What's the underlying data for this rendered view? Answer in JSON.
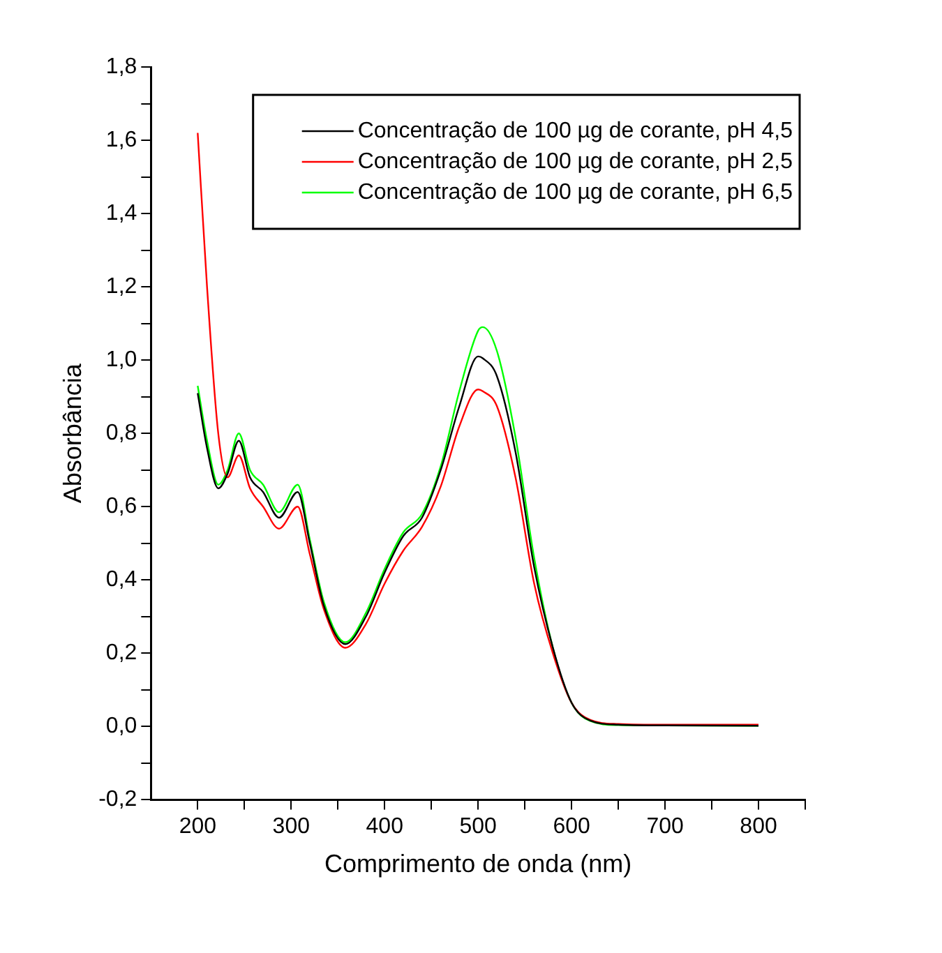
{
  "chart_data": {
    "type": "line",
    "xlabel": "Comprimento de onda (nm)",
    "ylabel": "Absorbância",
    "xlim": [
      150,
      850
    ],
    "ylim": [
      -0.2,
      1.8
    ],
    "xticks": [
      200,
      {
        "value": 250,
        "label": null
      },
      300,
      {
        "value": 350,
        "label": null
      },
      400,
      {
        "value": 450,
        "label": null
      },
      500,
      {
        "value": 550,
        "label": null
      },
      600,
      {
        "value": 650,
        "label": null
      },
      700,
      {
        "value": 750,
        "label": null
      },
      800,
      {
        "value": 850,
        "label": null
      }
    ],
    "yticks": [
      {
        "value": -0.2,
        "label": "-0,2"
      },
      {
        "value": -0.1,
        "label": null
      },
      {
        "value": 0,
        "label": "0,0"
      },
      {
        "value": 0.1,
        "label": null
      },
      {
        "value": 0.2,
        "label": "0,2"
      },
      {
        "value": 0.3,
        "label": null
      },
      {
        "value": 0.4,
        "label": "0,4"
      },
      {
        "value": 0.5,
        "label": null
      },
      {
        "value": 0.6,
        "label": "0,6"
      },
      {
        "value": 0.7,
        "label": null
      },
      {
        "value": 0.8,
        "label": "0,8"
      },
      {
        "value": 0.9,
        "label": null
      },
      {
        "value": 1.0,
        "label": "1,0"
      },
      {
        "value": 1.1,
        "label": null
      },
      {
        "value": 1.2,
        "label": "1,2"
      },
      {
        "value": 1.3,
        "label": null
      },
      {
        "value": 1.4,
        "label": "1,4"
      },
      {
        "value": 1.5,
        "label": null
      },
      {
        "value": 1.6,
        "label": "1,6"
      },
      {
        "value": 1.7,
        "label": null
      },
      {
        "value": 1.8,
        "label": "1,8"
      }
    ],
    "x": [
      200,
      210,
      222,
      232,
      244,
      256,
      270,
      287,
      307,
      320,
      335,
      358,
      380,
      400,
      420,
      440,
      460,
      480,
      500,
      505,
      520,
      540,
      560,
      580,
      600,
      620,
      650,
      700,
      800
    ],
    "series": [
      {
        "name": "Concentração de 100 µg de corante, pH 4,5",
        "color": "#000000",
        "values": [
          0.91,
          0.76,
          0.65,
          0.69,
          0.78,
          0.68,
          0.64,
          0.57,
          0.64,
          0.5,
          0.33,
          0.225,
          0.3,
          0.42,
          0.52,
          0.57,
          0.7,
          0.875,
          1.01,
          1.005,
          0.957,
          0.75,
          0.435,
          0.215,
          0.065,
          0.016,
          0.005,
          0.003,
          0.002
        ]
      },
      {
        "name": "Concentração de 100 µg de corante, pH 2,5",
        "color": "#ff0000",
        "values": [
          1.62,
          1.2,
          0.8,
          0.68,
          0.74,
          0.65,
          0.6,
          0.54,
          0.6,
          0.47,
          0.32,
          0.215,
          0.28,
          0.39,
          0.48,
          0.545,
          0.655,
          0.82,
          0.92,
          0.915,
          0.875,
          0.68,
          0.39,
          0.2,
          0.065,
          0.018,
          0.007,
          0.005,
          0.005
        ]
      },
      {
        "name": "Concentração de 100 µg de corante, pH 6,5",
        "color": "#00ff00",
        "values": [
          0.93,
          0.78,
          0.66,
          0.7,
          0.8,
          0.7,
          0.66,
          0.585,
          0.66,
          0.51,
          0.34,
          0.23,
          0.31,
          0.43,
          0.53,
          0.58,
          0.71,
          0.916,
          1.08,
          1.09,
          1.026,
          0.79,
          0.46,
          0.215,
          0.065,
          0.015,
          0.004,
          0.003,
          0.002
        ]
      }
    ],
    "legend": "top right",
    "grid": false,
    "marker": "none",
    "line_style": "solid"
  }
}
